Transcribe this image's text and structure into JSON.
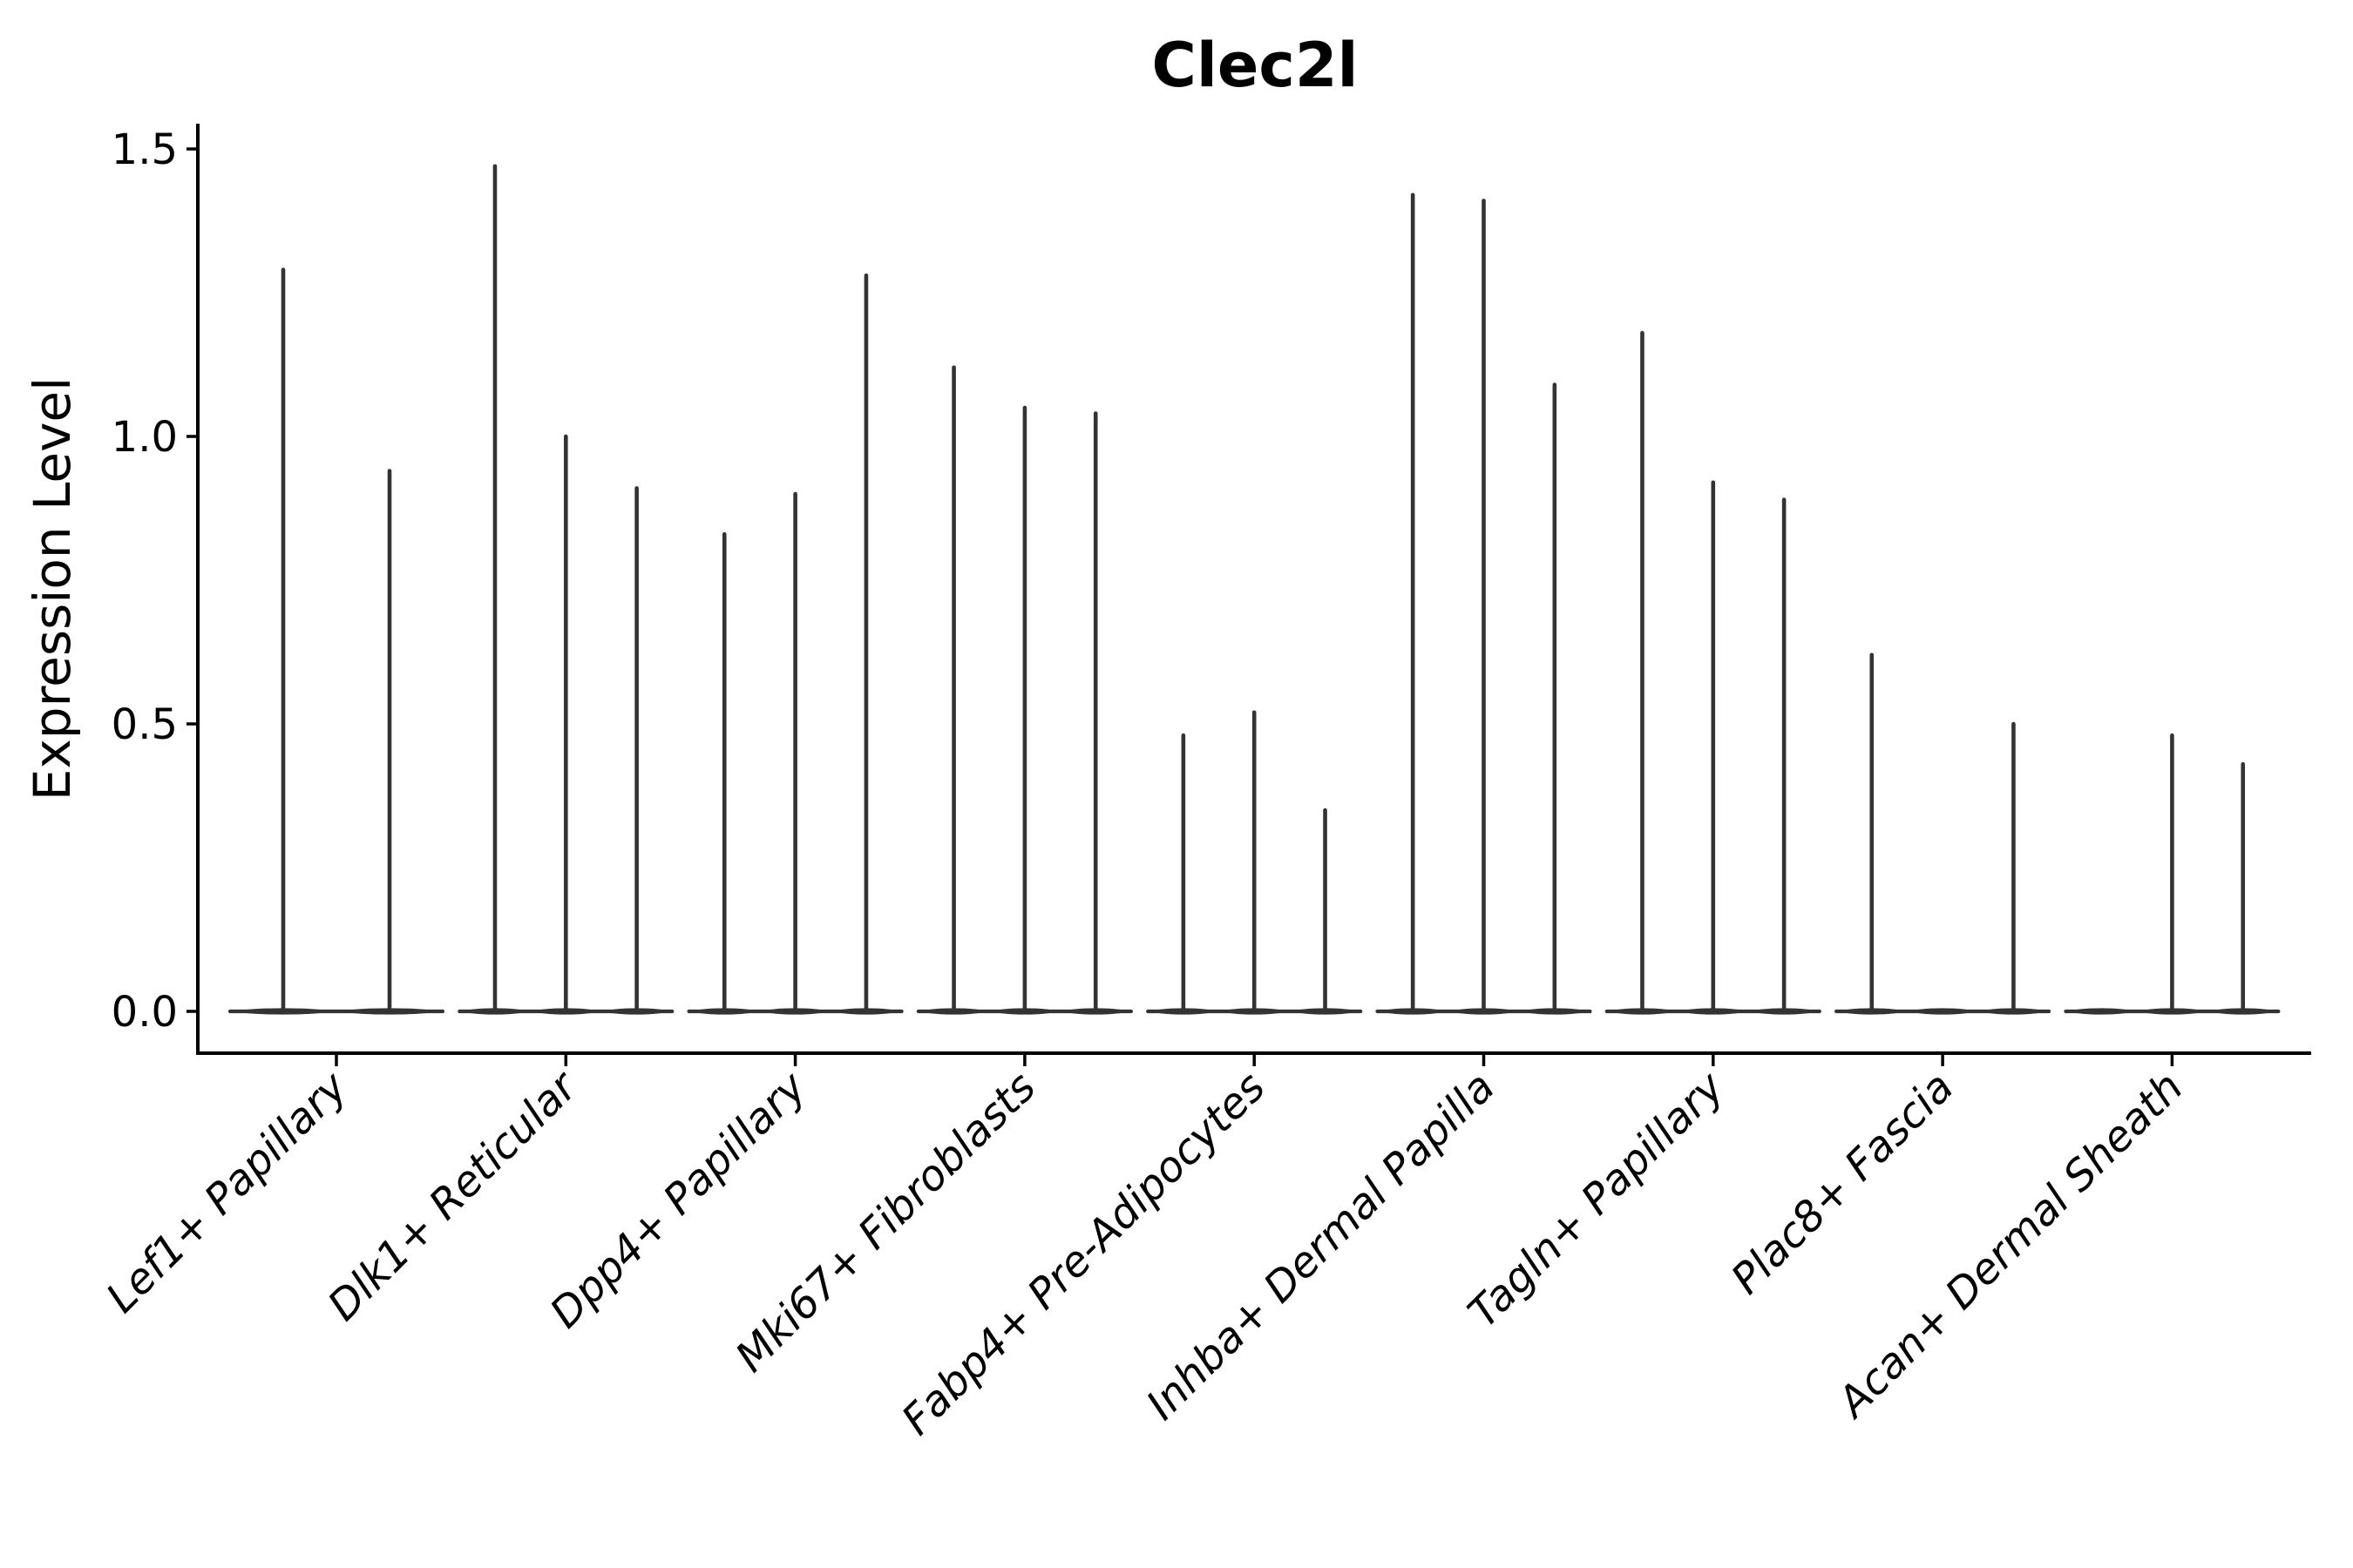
{
  "chart_data": {
    "type": "violin",
    "title": "Clec2l",
    "ylabel": "Expression Level",
    "xlabel": "",
    "legend": "none",
    "grid": false,
    "violin_shape": "flat-baseline-at-zero-with-thin-spike-to-max",
    "ylim": [
      0,
      1.55
    ],
    "y_ticks": [
      0.0,
      0.5,
      1.0,
      1.5
    ],
    "y_tick_labels": [
      "0.0",
      "0.5",
      "1.0",
      "1.5"
    ],
    "categories": [
      "Lef1+ Papillary",
      "Dlk1+ Reticular",
      "Dpp4+ Papillary",
      "Mki67+ Fibroblasts",
      "Fabp4+ Pre-Adipocytes",
      "Inhba+ Dermal Papilla",
      "Tagln+ Papillary",
      "Plac8+ Fascia",
      "Acan+ Dermal Sheath"
    ],
    "groups": [
      {
        "category": "Lef1+ Papillary",
        "violins": [
          1.29,
          0.94
        ]
      },
      {
        "category": "Dlk1+ Reticular",
        "violins": [
          1.47,
          1.0,
          0.91
        ]
      },
      {
        "category": "Dpp4+ Papillary",
        "violins": [
          0.83,
          0.9,
          1.28
        ]
      },
      {
        "category": "Mki67+ Fibroblasts",
        "violins": [
          1.12,
          1.05,
          1.04
        ]
      },
      {
        "category": "Fabp4+ Pre-Adipocytes",
        "violins": [
          0.48,
          0.52,
          0.35
        ]
      },
      {
        "category": "Inhba+ Dermal Papilla",
        "violins": [
          1.42,
          1.41,
          1.09
        ]
      },
      {
        "category": "Tagln+ Papillary",
        "violins": [
          1.18,
          0.92,
          0.89
        ]
      },
      {
        "category": "Plac8+ Fascia",
        "violins": [
          0.62,
          0.0,
          0.5
        ]
      },
      {
        "category": "Acan+ Dermal Sheath",
        "violins": [
          0.0,
          0.48,
          0.43
        ]
      }
    ],
    "colors": {
      "violin_line": "#333333",
      "axis": "#000000",
      "text": "#000000",
      "background": "#ffffff"
    }
  }
}
